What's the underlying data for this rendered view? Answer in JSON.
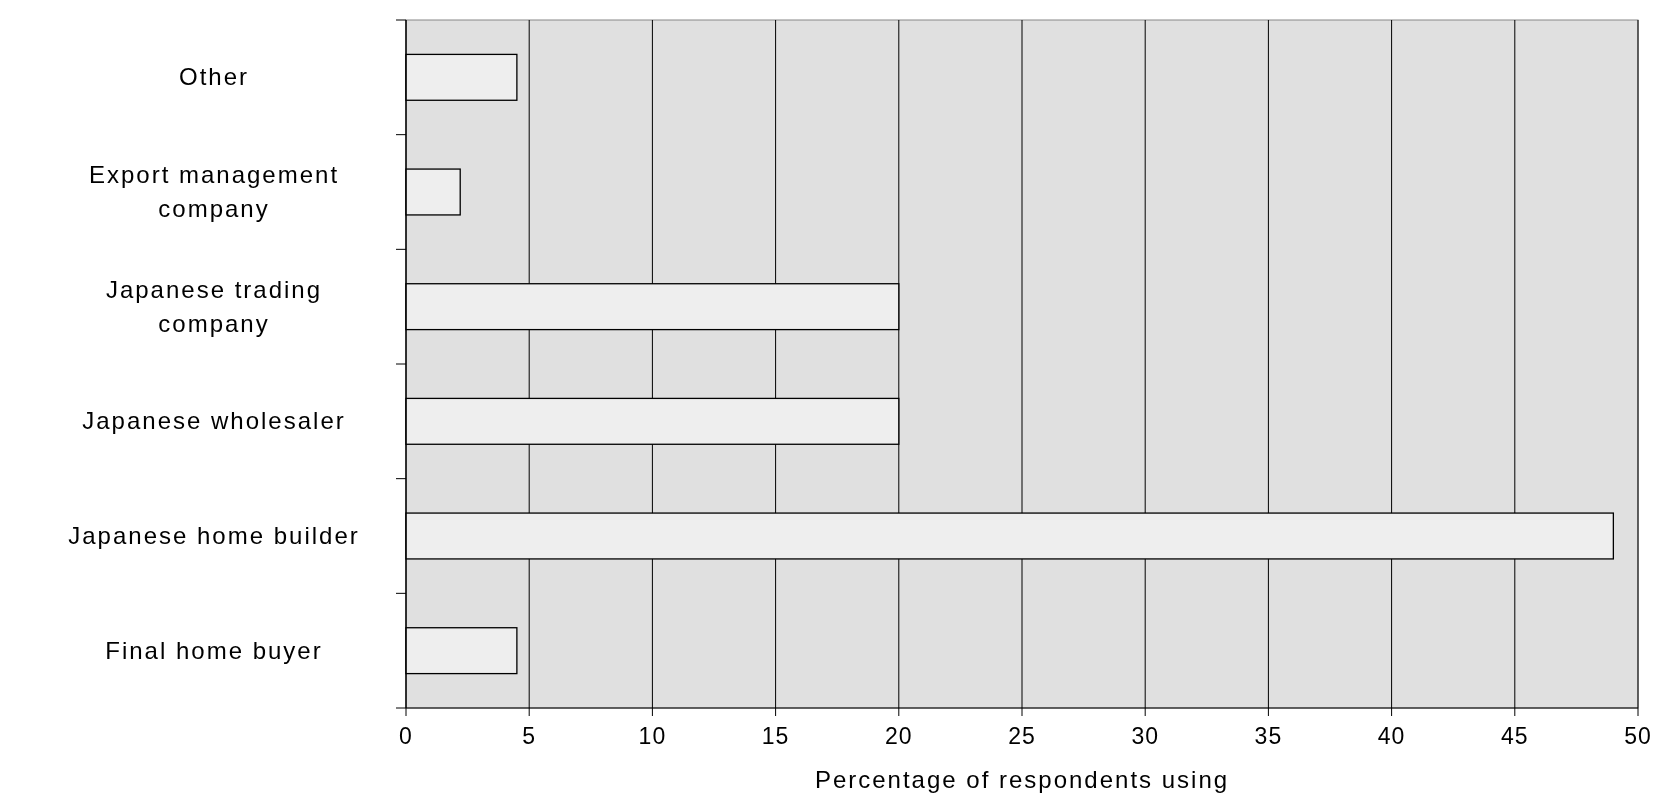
{
  "chart_data": {
    "type": "bar",
    "orientation": "horizontal",
    "xlabel": "Percentage of respondents using",
    "categories": [
      "Other",
      "Export management company",
      "Japanese trading company",
      "Japanese wholesaler",
      "Japanese home builder",
      "Final home buyer"
    ],
    "values": [
      4.5,
      2.2,
      20,
      20,
      49,
      4.5
    ],
    "color": "#eeeeee",
    "xlim": [
      0,
      50
    ],
    "xticks": [
      0,
      5,
      10,
      15,
      20,
      25,
      30,
      35,
      40,
      45,
      50
    ],
    "grid": "x"
  }
}
